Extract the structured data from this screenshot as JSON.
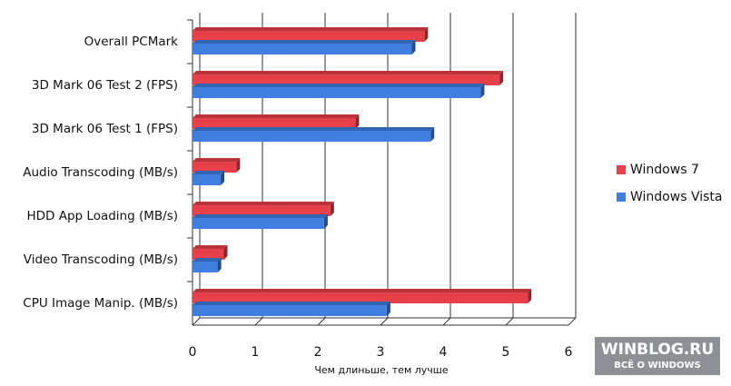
{
  "chart_data": {
    "type": "bar",
    "orientation": "horizontal",
    "categories": [
      "Overall PCMark",
      "3D Mark 06 Test 2 (FPS)",
      "3D Mark 06 Test 1 (FPS)",
      "Audio Transcoding (MB/s)",
      "HDD App Loading (MB/s)",
      "Video Transcoding (MB/s)",
      "CPU Image Manip. (MB/s)"
    ],
    "series": [
      {
        "name": "Windows 7",
        "color": "#e8404a",
        "values": [
          3.7,
          4.9,
          2.6,
          0.7,
          2.2,
          0.5,
          5.35
        ]
      },
      {
        "name": "Windows Vista",
        "color": "#3f7fe0",
        "values": [
          3.5,
          4.6,
          3.8,
          0.45,
          2.1,
          0.4,
          3.1
        ]
      }
    ],
    "xlim": [
      0,
      6
    ],
    "xticks": [
      0,
      1,
      2,
      3,
      4,
      5,
      6
    ],
    "xlabel": "Чем длиньше, тем лучше",
    "grid": true,
    "legend": "right"
  },
  "watermark": {
    "title": "WINBLOG.RU",
    "subtitle": "ВСЁ О WINDOWS"
  }
}
